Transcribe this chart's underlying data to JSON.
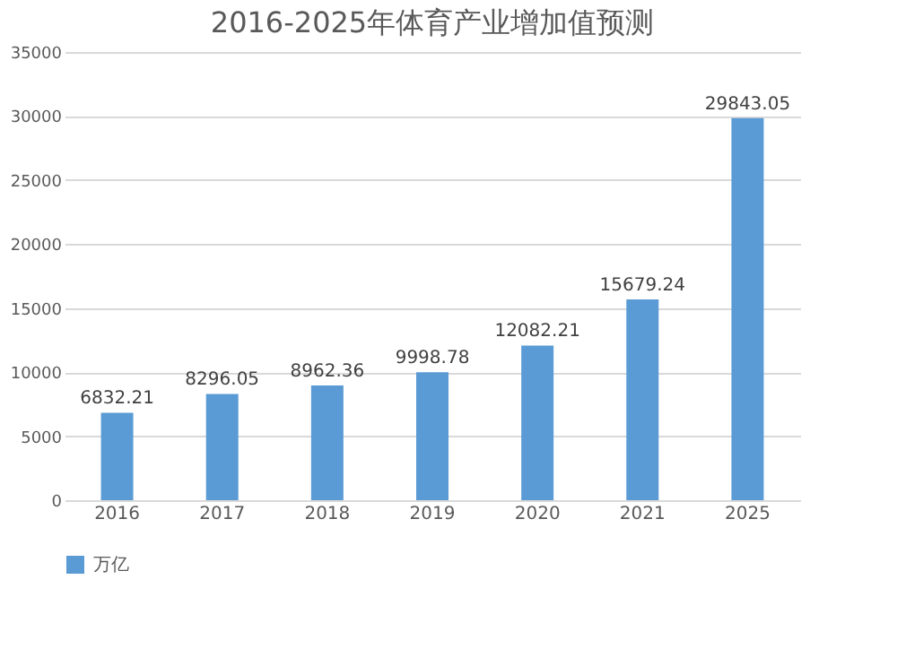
{
  "chart_data": {
    "type": "bar",
    "title": "2016-2025年体育产业增加值预测",
    "categories": [
      "2016",
      "2017",
      "2018",
      "2019",
      "2020",
      "2021",
      "2025"
    ],
    "series": [
      {
        "name": "万亿",
        "color": "#5b9bd5",
        "values": [
          6832.21,
          8296.05,
          8962.36,
          9998.78,
          12082.21,
          15679.24,
          29843.05
        ]
      }
    ],
    "ylim": [
      0,
      35000
    ],
    "yticks": [
      0,
      5000,
      10000,
      15000,
      20000,
      25000,
      30000,
      35000
    ],
    "grid": "y",
    "legend": "bottom",
    "data_labels": true
  }
}
